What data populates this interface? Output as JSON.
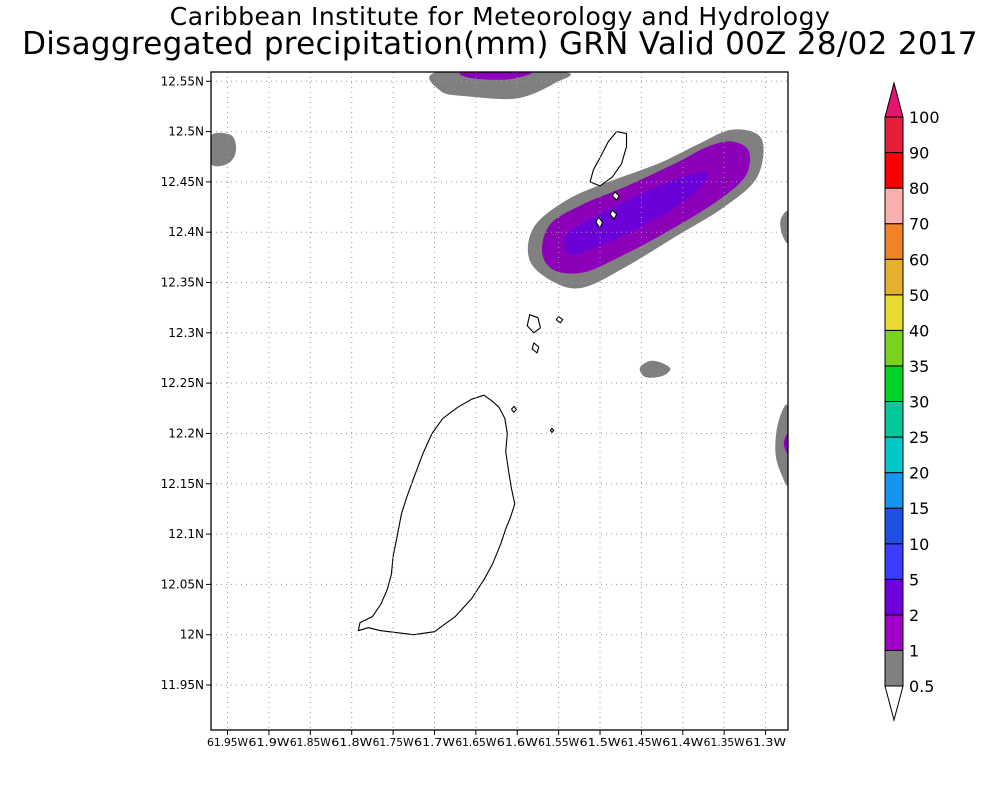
{
  "header": {
    "institute": "Caribbean Institute for Meteorology and Hydrology",
    "product": "Disaggregated precipitation(mm) GRN Valid 00Z 28/02 2017"
  },
  "map": {
    "region": "GRN",
    "lon_range": [
      -61.97,
      -61.2729
    ],
    "lat_range": [
      11.9053,
      12.5592
    ],
    "lat_ticks": [
      {
        "value": 12.55,
        "label": "12.55N"
      },
      {
        "value": 12.5,
        "label": "12.5N"
      },
      {
        "value": 12.45,
        "label": "12.45N"
      },
      {
        "value": 12.4,
        "label": "12.4N"
      },
      {
        "value": 12.35,
        "label": "12.35N"
      },
      {
        "value": 12.3,
        "label": "12.3N"
      },
      {
        "value": 12.25,
        "label": "12.25N"
      },
      {
        "value": 12.2,
        "label": "12.2N"
      },
      {
        "value": 12.15,
        "label": "12.15N"
      },
      {
        "value": 12.1,
        "label": "12.1N"
      },
      {
        "value": 12.05,
        "label": "12.05N"
      },
      {
        "value": 12.0,
        "label": "12N"
      },
      {
        "value": 11.95,
        "label": "11.95N"
      }
    ],
    "lon_ticks": [
      {
        "value": -61.95,
        "label": "61.95W"
      },
      {
        "value": -61.9,
        "label": "61.9W"
      },
      {
        "value": -61.85,
        "label": "61.85W"
      },
      {
        "value": -61.8,
        "label": "61.8W"
      },
      {
        "value": -61.75,
        "label": "61.75W"
      },
      {
        "value": -61.7,
        "label": "61.7W"
      },
      {
        "value": -61.65,
        "label": "61.65W"
      },
      {
        "value": -61.6,
        "label": "61.6W"
      },
      {
        "value": -61.55,
        "label": "61.55W"
      },
      {
        "value": -61.5,
        "label": "61.5W"
      },
      {
        "value": -61.45,
        "label": "61.45W"
      },
      {
        "value": -61.4,
        "label": "61.4W"
      },
      {
        "value": -61.35,
        "label": "61.35W"
      },
      {
        "value": -61.3,
        "label": "61.3W"
      }
    ],
    "grid": "dotted",
    "precip_areas": [
      {
        "name": "northeast-band",
        "level_mm": 0.5,
        "color": "#808080",
        "points": [
          [
            -61.555,
            12.35
          ],
          [
            -61.585,
            12.372
          ],
          [
            -61.58,
            12.405
          ],
          [
            -61.54,
            12.432
          ],
          [
            -61.49,
            12.45
          ],
          [
            -61.43,
            12.468
          ],
          [
            -61.38,
            12.488
          ],
          [
            -61.34,
            12.502
          ],
          [
            -61.305,
            12.493
          ],
          [
            -61.31,
            12.455
          ],
          [
            -61.35,
            12.425
          ],
          [
            -61.41,
            12.395
          ],
          [
            -61.47,
            12.365
          ],
          [
            -61.52,
            12.345
          ]
        ]
      },
      {
        "name": "northeast-band",
        "level_mm": 1,
        "color": "#8b00b8",
        "points": [
          [
            -61.555,
            12.362
          ],
          [
            -61.57,
            12.38
          ],
          [
            -61.56,
            12.408
          ],
          [
            -61.52,
            12.428
          ],
          [
            -61.47,
            12.445
          ],
          [
            -61.41,
            12.468
          ],
          [
            -61.37,
            12.485
          ],
          [
            -61.34,
            12.49
          ],
          [
            -61.32,
            12.48
          ],
          [
            -61.325,
            12.455
          ],
          [
            -61.36,
            12.43
          ],
          [
            -61.42,
            12.4
          ],
          [
            -61.48,
            12.374
          ],
          [
            -61.52,
            12.36
          ]
        ]
      },
      {
        "name": "northeast-band",
        "level_mm": 2,
        "color": "#6c00d9",
        "points": [
          [
            -61.535,
            12.378
          ],
          [
            -61.54,
            12.398
          ],
          [
            -61.5,
            12.418
          ],
          [
            -61.45,
            12.438
          ],
          [
            -61.4,
            12.455
          ],
          [
            -61.37,
            12.458
          ],
          [
            -61.39,
            12.436
          ],
          [
            -61.44,
            12.41
          ],
          [
            -61.49,
            12.39
          ]
        ]
      },
      {
        "name": "top-edge-patch",
        "level_mm": 0.5,
        "color": "#808080",
        "points": [
          [
            -61.695,
            12.5592
          ],
          [
            -61.692,
            12.54
          ],
          [
            -61.66,
            12.535
          ],
          [
            -61.6,
            12.533
          ],
          [
            -61.555,
            12.548
          ],
          [
            -61.545,
            12.5592
          ]
        ]
      },
      {
        "name": "top-edge-patch",
        "level_mm": 1,
        "color": "#8b00b8",
        "points": [
          [
            -61.665,
            12.5592
          ],
          [
            -61.655,
            12.553
          ],
          [
            -61.61,
            12.552
          ],
          [
            -61.585,
            12.5592
          ]
        ]
      },
      {
        "name": "west-edge-patch",
        "level_mm": 0.5,
        "color": "#808080",
        "points": [
          [
            -61.97,
            12.496
          ],
          [
            -61.945,
            12.496
          ],
          [
            -61.94,
            12.48
          ],
          [
            -61.95,
            12.468
          ],
          [
            -61.97,
            12.468
          ]
        ]
      },
      {
        "name": "east-edge-patch-north",
        "level_mm": 0.5,
        "color": "#808080",
        "points": [
          [
            -61.2729,
            12.42
          ],
          [
            -61.282,
            12.412
          ],
          [
            -61.28,
            12.398
          ],
          [
            -61.2729,
            12.39
          ]
        ]
      },
      {
        "name": "small-patch",
        "level_mm": 0.5,
        "color": "#808080",
        "points": [
          [
            -61.452,
            12.265
          ],
          [
            -61.44,
            12.272
          ],
          [
            -61.425,
            12.27
          ],
          [
            -61.415,
            12.264
          ],
          [
            -61.425,
            12.257
          ],
          [
            -61.445,
            12.256
          ]
        ]
      },
      {
        "name": "east-edge-patch-south",
        "level_mm": 0.5,
        "color": "#808080",
        "points": [
          [
            -61.2729,
            12.226
          ],
          [
            -61.285,
            12.21
          ],
          [
            -61.288,
            12.18
          ],
          [
            -61.28,
            12.158
          ],
          [
            -61.2729,
            12.153
          ]
        ]
      },
      {
        "name": "east-edge-patch-south",
        "level_mm": 1,
        "color": "#8b00b8",
        "points": [
          [
            -61.2729,
            12.2
          ],
          [
            -61.278,
            12.19
          ],
          [
            -61.2729,
            12.18
          ]
        ]
      }
    ],
    "islands": [
      {
        "name": "grenada",
        "points": [
          [
            -61.64,
            12.238
          ],
          [
            -61.63,
            12.232
          ],
          [
            -61.622,
            12.226
          ],
          [
            -61.615,
            12.215
          ],
          [
            -61.612,
            12.2
          ],
          [
            -61.614,
            12.182
          ],
          [
            -61.61,
            12.16
          ],
          [
            -61.607,
            12.145
          ],
          [
            -61.603,
            12.13
          ],
          [
            -61.608,
            12.117
          ],
          [
            -61.614,
            12.105
          ],
          [
            -61.62,
            12.09
          ],
          [
            -61.63,
            12.07
          ],
          [
            -61.64,
            12.055
          ],
          [
            -61.655,
            12.036
          ],
          [
            -61.675,
            12.018
          ],
          [
            -61.7,
            12.003
          ],
          [
            -61.725,
            12.0
          ],
          [
            -61.745,
            12.002
          ],
          [
            -61.765,
            12.004
          ],
          [
            -61.78,
            12.007
          ],
          [
            -61.792,
            12.004
          ],
          [
            -61.79,
            12.012
          ],
          [
            -61.775,
            12.018
          ],
          [
            -61.765,
            12.03
          ],
          [
            -61.757,
            12.045
          ],
          [
            -61.752,
            12.06
          ],
          [
            -61.75,
            12.078
          ],
          [
            -61.745,
            12.098
          ],
          [
            -61.74,
            12.12
          ],
          [
            -61.733,
            12.138
          ],
          [
            -61.724,
            12.158
          ],
          [
            -61.714,
            12.18
          ],
          [
            -61.703,
            12.2
          ],
          [
            -61.69,
            12.215
          ],
          [
            -61.672,
            12.226
          ],
          [
            -61.655,
            12.234
          ]
        ]
      },
      {
        "name": "carriacou",
        "points": [
          [
            -61.48,
            12.5
          ],
          [
            -61.468,
            12.498
          ],
          [
            -61.468,
            12.485
          ],
          [
            -61.474,
            12.468
          ],
          [
            -61.485,
            12.455
          ],
          [
            -61.5,
            12.446
          ],
          [
            -61.512,
            12.45
          ],
          [
            -61.508,
            12.462
          ],
          [
            -61.5,
            12.474
          ],
          [
            -61.49,
            12.49
          ]
        ]
      },
      {
        "name": "carriacou-islet-a",
        "points": [
          [
            -61.502,
            12.415
          ],
          [
            -61.497,
            12.41
          ],
          [
            -61.5,
            12.404
          ],
          [
            -61.505,
            12.41
          ]
        ]
      },
      {
        "name": "carriacou-islet-b",
        "points": [
          [
            -61.485,
            12.422
          ],
          [
            -61.48,
            12.418
          ],
          [
            -61.483,
            12.413
          ],
          [
            -61.488,
            12.418
          ]
        ]
      },
      {
        "name": "carriacou-islet-c",
        "points": [
          [
            -61.482,
            12.44
          ],
          [
            -61.477,
            12.436
          ],
          [
            -61.48,
            12.432
          ],
          [
            -61.485,
            12.436
          ]
        ]
      },
      {
        "name": "ronde-island",
        "points": [
          [
            -61.585,
            12.318
          ],
          [
            -61.575,
            12.315
          ],
          [
            -61.572,
            12.305
          ],
          [
            -61.58,
            12.3
          ],
          [
            -61.588,
            12.307
          ]
        ]
      },
      {
        "name": "caille-island",
        "points": [
          [
            -61.58,
            12.29
          ],
          [
            -61.574,
            12.286
          ],
          [
            -61.576,
            12.28
          ],
          [
            -61.582,
            12.284
          ]
        ]
      },
      {
        "name": "diamond-rock",
        "points": [
          [
            -61.55,
            12.316
          ],
          [
            -61.545,
            12.313
          ],
          [
            -61.548,
            12.31
          ],
          [
            -61.553,
            12.313
          ]
        ]
      },
      {
        "name": "islet-east-1",
        "points": [
          [
            -61.604,
            12.227
          ],
          [
            -61.601,
            12.224
          ],
          [
            -61.604,
            12.221
          ],
          [
            -61.607,
            12.224
          ]
        ]
      },
      {
        "name": "islet-east-2",
        "points": [
          [
            -61.558,
            12.205
          ],
          [
            -61.556,
            12.203
          ],
          [
            -61.558,
            12.201
          ],
          [
            -61.56,
            12.203
          ]
        ]
      }
    ]
  },
  "colorbar": {
    "levels": [
      "0.5",
      "1",
      "2",
      "5",
      "10",
      "15",
      "20",
      "25",
      "30",
      "35",
      "40",
      "50",
      "60",
      "70",
      "80",
      "90",
      "100"
    ],
    "colors": [
      "#808080",
      "#a000c8",
      "#6e00dc",
      "#3c3cff",
      "#1e50e6",
      "#1496f0",
      "#00c8c8",
      "#00c896",
      "#00d228",
      "#78d21e",
      "#e6dc32",
      "#e6af2d",
      "#f08228",
      "#faafaf",
      "#fa0000",
      "#e61e3c"
    ],
    "over_color": "#e6146e",
    "under_color": "#ffffff"
  }
}
